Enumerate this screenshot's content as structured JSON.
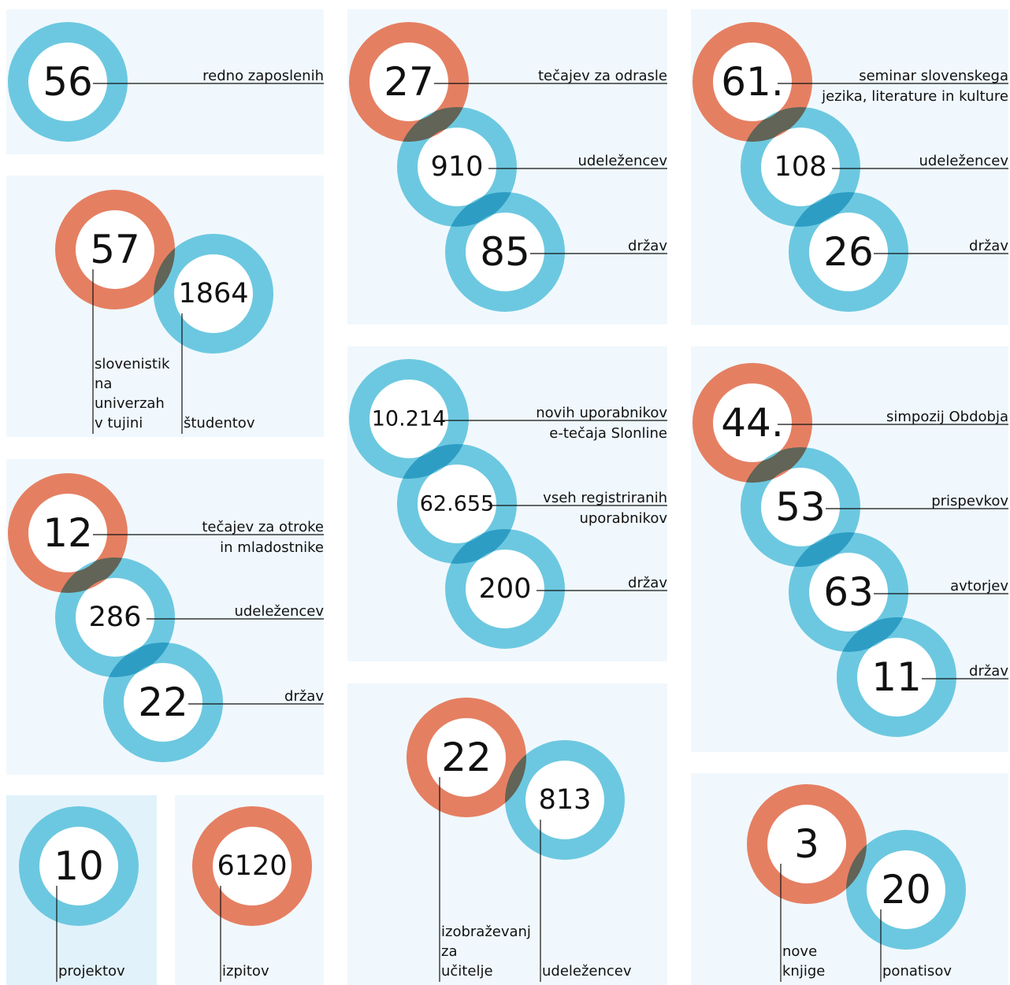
{
  "panels": [
    {
      "items": [
        {
          "value": 56,
          "color": "#6cc8e0",
          "label": [
            "redno zaposlenih"
          ]
        }
      ]
    },
    {
      "items": [
        {
          "value": 57,
          "color": "#e57f62",
          "label": [
            "slovenistik",
            "na",
            "univerzah",
            "v tujini"
          ]
        },
        {
          "value": 1864,
          "color": "#6cc8e0",
          "label": [
            "študentov"
          ]
        }
      ]
    },
    {
      "items": [
        {
          "value": 12,
          "color": "#e57f62",
          "label": [
            "tečajev za otroke",
            "in mladostnike"
          ]
        },
        {
          "value": 286,
          "color": "#6cc8e0",
          "label": [
            "udeležencev"
          ]
        },
        {
          "value": 22,
          "color": "#6cc8e0",
          "label": [
            "držav"
          ]
        }
      ]
    },
    {
      "items": [
        {
          "value": 10,
          "color": "#6cc8e0",
          "label": [
            "projektov"
          ]
        }
      ]
    },
    {
      "items": [
        {
          "value": 6120,
          "color": "#e57f62",
          "label": [
            "izpitov"
          ]
        }
      ]
    },
    {
      "items": [
        {
          "value": 27,
          "color": "#e57f62",
          "label": [
            "tečajev za odrasle"
          ]
        },
        {
          "value": 910,
          "color": "#6cc8e0",
          "label": [
            "udeležencev"
          ]
        },
        {
          "value": 85,
          "color": "#6cc8e0",
          "label": [
            "držav"
          ]
        }
      ]
    },
    {
      "items": [
        {
          "value": "10.214",
          "color": "#6cc8e0",
          "label": [
            "novih uporabnikov",
            "e-tečaja Slonline"
          ]
        },
        {
          "value": "62.655",
          "color": "#6cc8e0",
          "label": [
            "vseh registriranih",
            "uporabnikov"
          ]
        },
        {
          "value": 200,
          "color": "#6cc8e0",
          "label": [
            "držav"
          ]
        }
      ]
    },
    {
      "items": [
        {
          "value": 22,
          "color": "#e57f62",
          "label": [
            "izobraževanj",
            "za",
            "učitelje"
          ]
        },
        {
          "value": 813,
          "color": "#6cc8e0",
          "label": [
            "udeležencev"
          ]
        }
      ]
    },
    {
      "items": [
        {
          "value": "61.",
          "color": "#e57f62",
          "label": [
            "seminar slovenskega",
            "jezika, literature in kulture"
          ]
        },
        {
          "value": 108,
          "color": "#6cc8e0",
          "label": [
            "udeležencev"
          ]
        },
        {
          "value": 26,
          "color": "#6cc8e0",
          "label": [
            "držav"
          ]
        }
      ]
    },
    {
      "items": [
        {
          "value": "44.",
          "color": "#e57f62",
          "label": [
            "simpozij Obdobja"
          ]
        },
        {
          "value": 53,
          "color": "#6cc8e0",
          "label": [
            "prispevkov"
          ]
        },
        {
          "value": 63,
          "color": "#6cc8e0",
          "label": [
            "avtorjev"
          ]
        },
        {
          "value": 11,
          "color": "#6cc8e0",
          "label": [
            "držav"
          ]
        }
      ]
    },
    {
      "items": [
        {
          "value": 3,
          "color": "#e57f62",
          "label": [
            "nove",
            "knjige"
          ]
        },
        {
          "value": 20,
          "color": "#6cc8e0",
          "label": [
            "ponatisov"
          ]
        }
      ]
    }
  ]
}
